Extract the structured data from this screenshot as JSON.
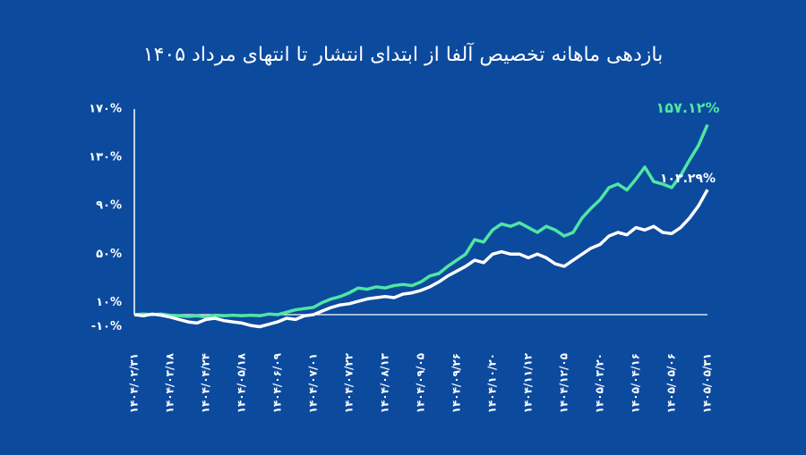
{
  "chart_data": {
    "type": "line",
    "title": "بازدهی ماهانه تخصیص آلفا از ابتدای انتشار تا انتهای مرداد ۱۴۰۵",
    "categories": [
      "۱۴۰۴/۰۲/۳۱",
      null,
      null,
      null,
      "۱۴۰۴/۰۳/۱۸",
      null,
      null,
      null,
      "۱۴۰۴/۰۴/۲۴",
      null,
      null,
      null,
      "۱۴۰۴/۰۵/۱۸",
      null,
      null,
      null,
      "۱۴۰۴/۰۶/۰۹",
      null,
      null,
      null,
      "۱۴۰۴/۰۷/۰۱",
      null,
      null,
      null,
      "۱۴۰۴/۰۷/۲۲",
      null,
      null,
      null,
      "۱۴۰۴/۰۸/۱۳",
      null,
      null,
      null,
      "۱۴۰۴/۰۹/۰۵",
      null,
      null,
      null,
      "۱۴۰۴/۰۹/۲۶",
      null,
      null,
      null,
      "۱۴۰۴/۱۰/۲۰",
      null,
      null,
      null,
      "۱۴۰۴/۱۱/۱۲",
      null,
      null,
      null,
      "۱۴۰۴/۱۲/۰۵",
      null,
      null,
      null,
      "۱۴۰۵/۰۳/۲۰",
      null,
      null,
      null,
      "۱۴۰۵/۰۴/۱۶",
      null,
      null,
      null,
      "۱۴۰۵/۰۵/۰۶",
      null,
      null,
      null,
      "۱۴۰۵/۰۵/۳۱"
    ],
    "series": [
      {
        "color": "#4fe6a4",
        "values": [
          0,
          0.5,
          0,
          0.5,
          -0.5,
          -1,
          -1.5,
          -1,
          -2,
          -0.5,
          -1,
          -0.5,
          -1,
          -0.5,
          -1,
          0.5,
          0,
          2,
          4,
          5,
          6,
          10,
          13,
          15,
          18,
          22,
          21,
          23,
          22,
          24,
          25,
          24,
          27,
          32,
          34,
          40,
          45,
          50,
          62,
          60,
          70,
          75,
          73,
          76,
          72,
          68,
          73,
          70,
          65,
          68,
          80,
          88,
          95,
          105,
          108,
          103,
          112,
          122,
          110,
          108,
          105,
          115,
          128,
          140,
          157.12
        ],
        "value_labels": [
          null,
          null,
          null,
          null,
          null,
          null,
          null,
          null,
          null,
          null,
          null,
          null,
          null,
          null,
          null,
          null,
          null,
          null,
          null,
          null,
          null,
          null,
          null,
          null,
          null,
          null,
          null,
          null,
          null,
          null,
          null,
          null,
          null,
          null,
          null,
          null,
          null,
          null,
          null,
          null,
          null,
          null,
          null,
          null,
          null,
          null,
          null,
          null,
          null,
          null,
          null,
          null,
          null,
          null,
          null,
          null,
          null,
          null,
          null,
          null,
          null,
          null,
          null,
          null,
          "۱۵۷.۱۲%"
        ]
      },
      {
        "color": "#ffffff",
        "values": [
          0,
          -1,
          0.5,
          -0.5,
          -2,
          -4,
          -6,
          -7,
          -4,
          -3,
          -5,
          -6,
          -7,
          -9,
          -10,
          -8,
          -6,
          -3,
          -4,
          -1,
          0,
          3,
          6,
          8,
          9,
          11,
          13,
          14,
          15,
          14,
          17,
          18,
          20,
          23,
          27,
          32,
          36,
          40,
          45,
          43,
          50,
          52,
          50,
          50,
          47,
          50,
          47,
          42,
          40,
          45,
          50,
          55,
          58,
          65,
          68,
          66,
          72,
          70,
          73,
          68,
          67,
          72,
          80,
          90,
          103.29
        ],
        "value_labels": [
          null,
          null,
          null,
          null,
          null,
          null,
          null,
          null,
          null,
          null,
          null,
          null,
          null,
          null,
          null,
          null,
          null,
          null,
          null,
          null,
          null,
          null,
          null,
          null,
          null,
          null,
          null,
          null,
          null,
          null,
          null,
          null,
          null,
          null,
          null,
          null,
          null,
          null,
          null,
          null,
          null,
          null,
          null,
          null,
          null,
          null,
          null,
          null,
          null,
          null,
          null,
          null,
          null,
          null,
          null,
          null,
          null,
          null,
          null,
          null,
          null,
          null,
          null,
          null,
          "۱۰۳.۲۹%"
        ]
      }
    ],
    "ylim": [
      -10,
      170
    ],
    "yticks": [
      {
        "value": -10,
        "label": "-۱۰%"
      },
      {
        "value": 10,
        "label": "۱۰%"
      },
      {
        "value": 50,
        "label": "۵۰%"
      },
      {
        "value": 90,
        "label": "۹۰%"
      },
      {
        "value": 130,
        "label": "۱۳۰%"
      },
      {
        "value": 170,
        "label": "۱۷۰%"
      }
    ],
    "grid": false
  }
}
